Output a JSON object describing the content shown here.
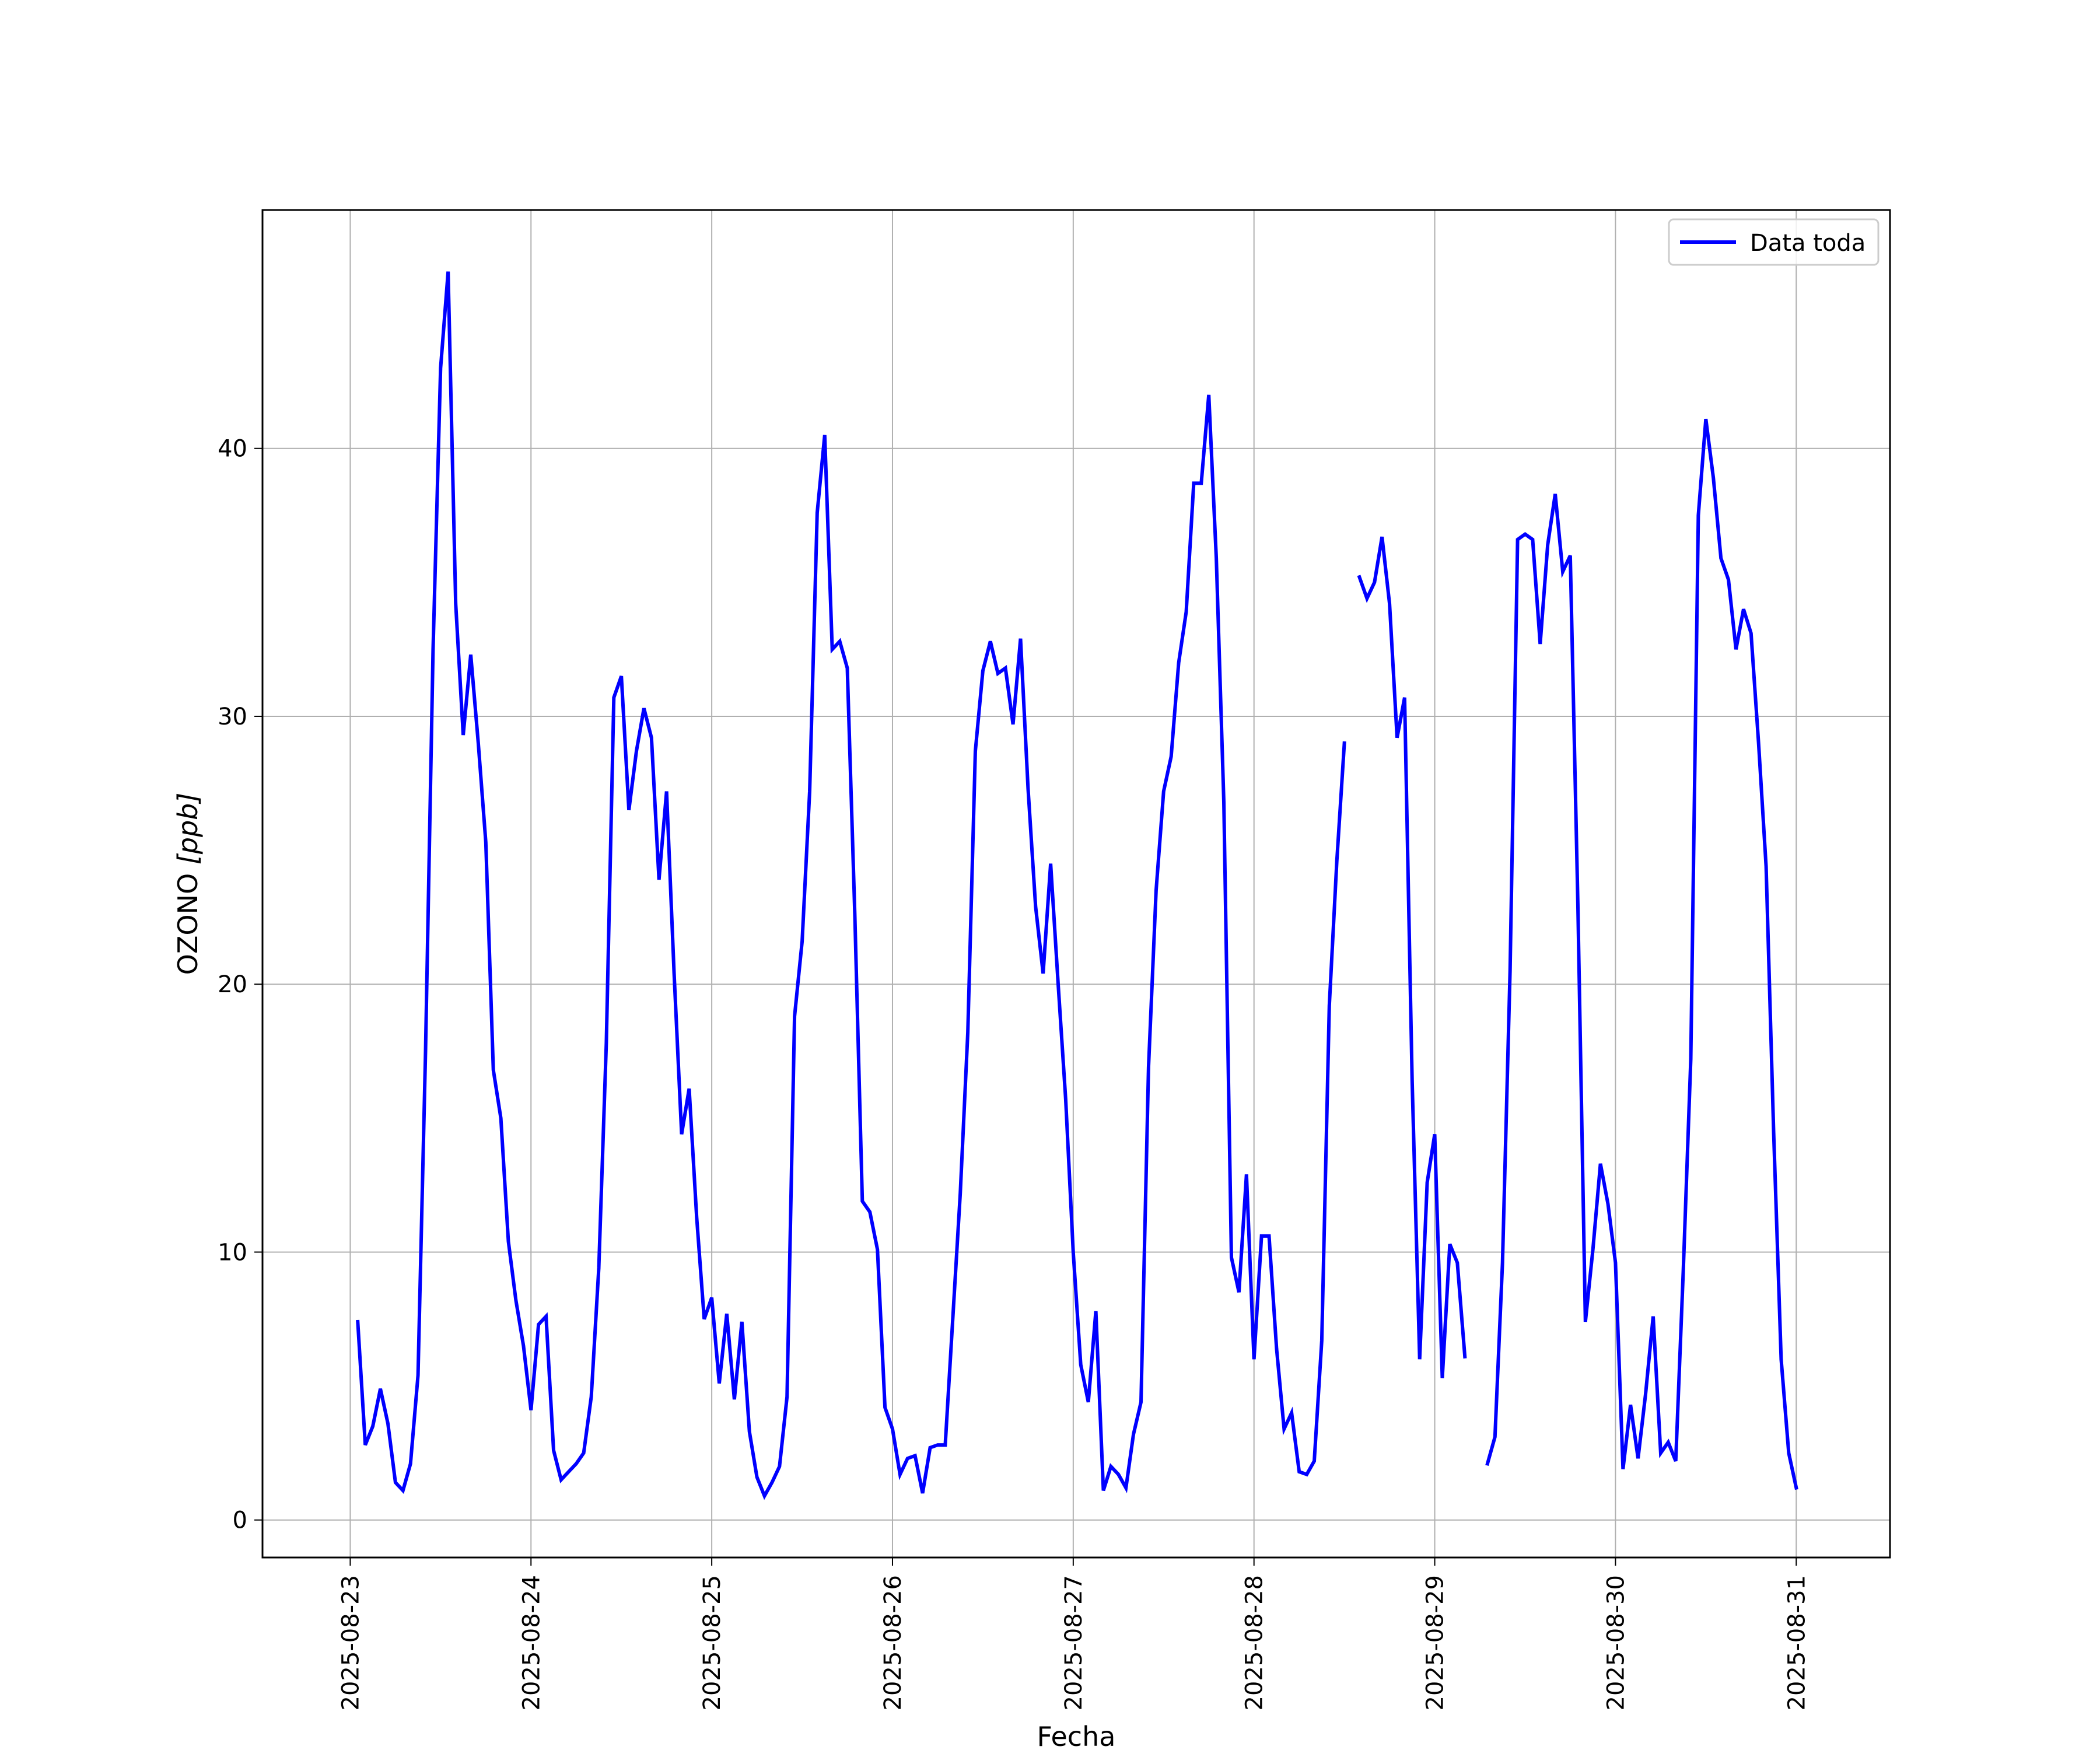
{
  "chart_data": {
    "type": "line",
    "xlabel": "Fecha",
    "ylabel": "OZONO [ppb]",
    "ylabel_main": "OZONO ",
    "ylabel_unit": "[ppb]",
    "x_is_date": true,
    "xlim": [
      "2025-08-22 12:21",
      "2025-08-31 12:27"
    ],
    "ylim": [
      -1.4,
      48.9
    ],
    "x_ticks": [
      "2025-08-23",
      "2025-08-24",
      "2025-08-25",
      "2025-08-26",
      "2025-08-27",
      "2025-08-28",
      "2025-08-29",
      "2025-08-30",
      "2025-08-31"
    ],
    "y_ticks": [
      0,
      10,
      20,
      30,
      40
    ],
    "grid": true,
    "legend_position": "top-right",
    "series": [
      {
        "name": "Data toda",
        "color": "#0000ff",
        "points": [
          [
            "2025-08-23 01:00",
            7.4
          ],
          [
            "2025-08-23 02:00",
            2.8
          ],
          [
            "2025-08-23 03:00",
            3.5
          ],
          [
            "2025-08-23 04:00",
            4.9
          ],
          [
            "2025-08-23 05:00",
            3.6
          ],
          [
            "2025-08-23 06:00",
            1.4
          ],
          [
            "2025-08-23 07:00",
            1.1
          ],
          [
            "2025-08-23 08:00",
            2.1
          ],
          [
            "2025-08-23 09:00",
            5.4
          ],
          [
            "2025-08-23 10:00",
            17.5
          ],
          [
            "2025-08-23 11:00",
            32.5
          ],
          [
            "2025-08-23 12:00",
            43.0
          ],
          [
            "2025-08-23 13:00",
            46.6
          ],
          [
            "2025-08-23 14:00",
            34.2
          ],
          [
            "2025-08-23 15:00",
            29.3
          ],
          [
            "2025-08-23 16:00",
            32.3
          ],
          [
            "2025-08-23 17:00",
            29.0
          ],
          [
            "2025-08-23 18:00",
            25.3
          ],
          [
            "2025-08-23 19:00",
            16.8
          ],
          [
            "2025-08-23 20:00",
            15.0
          ],
          [
            "2025-08-23 21:00",
            10.4
          ],
          [
            "2025-08-23 22:00",
            8.2
          ],
          [
            "2025-08-23 23:00",
            6.5
          ],
          [
            "2025-08-24 00:00",
            4.1
          ],
          [
            "2025-08-24 01:00",
            7.3
          ],
          [
            "2025-08-24 02:00",
            7.6
          ],
          [
            "2025-08-24 03:00",
            2.6
          ],
          [
            "2025-08-24 04:00",
            1.5
          ],
          [
            "2025-08-24 05:00",
            1.8
          ],
          [
            "2025-08-24 06:00",
            2.1
          ],
          [
            "2025-08-24 07:00",
            2.5
          ],
          [
            "2025-08-24 08:00",
            4.6
          ],
          [
            "2025-08-24 09:00",
            9.4
          ],
          [
            "2025-08-24 10:00",
            17.8
          ],
          [
            "2025-08-24 11:00",
            30.7
          ],
          [
            "2025-08-24 12:00",
            31.5
          ],
          [
            "2025-08-24 13:00",
            26.5
          ],
          [
            "2025-08-24 14:00",
            28.7
          ],
          [
            "2025-08-24 15:00",
            30.3
          ],
          [
            "2025-08-24 16:00",
            29.2
          ],
          [
            "2025-08-24 17:00",
            23.9
          ],
          [
            "2025-08-24 18:00",
            27.2
          ],
          [
            "2025-08-24 19:00",
            20.4
          ],
          [
            "2025-08-24 20:00",
            14.4
          ],
          [
            "2025-08-24 21:00",
            16.1
          ],
          [
            "2025-08-24 22:00",
            11.3
          ],
          [
            "2025-08-24 23:00",
            7.5
          ],
          [
            "2025-08-25 00:00",
            8.3
          ],
          [
            "2025-08-25 01:00",
            5.1
          ],
          [
            "2025-08-25 02:00",
            7.7
          ],
          [
            "2025-08-25 03:00",
            4.5
          ],
          [
            "2025-08-25 04:00",
            7.4
          ],
          [
            "2025-08-25 05:00",
            3.3
          ],
          [
            "2025-08-25 06:00",
            1.6
          ],
          [
            "2025-08-25 07:00",
            0.9
          ],
          [
            "2025-08-25 08:00",
            1.4
          ],
          [
            "2025-08-25 09:00",
            2.0
          ],
          [
            "2025-08-25 10:00",
            4.6
          ],
          [
            "2025-08-25 11:00",
            18.8
          ],
          [
            "2025-08-25 12:00",
            21.6
          ],
          [
            "2025-08-25 13:00",
            27.2
          ],
          [
            "2025-08-25 14:00",
            37.6
          ],
          [
            "2025-08-25 15:00",
            40.5
          ],
          [
            "2025-08-25 16:00",
            32.5
          ],
          [
            "2025-08-25 17:00",
            32.8
          ],
          [
            "2025-08-25 18:00",
            31.8
          ],
          [
            "2025-08-25 19:00",
            22.6
          ],
          [
            "2025-08-25 20:00",
            11.9
          ],
          [
            "2025-08-25 21:00",
            11.5
          ],
          [
            "2025-08-25 22:00",
            10.1
          ],
          [
            "2025-08-25 23:00",
            4.2
          ],
          [
            "2025-08-26 00:00",
            3.4
          ],
          [
            "2025-08-26 01:00",
            1.7
          ],
          [
            "2025-08-26 02:00",
            2.3
          ],
          [
            "2025-08-26 03:00",
            2.4
          ],
          [
            "2025-08-26 04:00",
            1.0
          ],
          [
            "2025-08-26 05:00",
            2.7
          ],
          [
            "2025-08-26 06:00",
            2.8
          ],
          [
            "2025-08-26 07:00",
            2.8
          ],
          [
            "2025-08-26 08:00",
            7.5
          ],
          [
            "2025-08-26 09:00",
            12.2
          ],
          [
            "2025-08-26 10:00",
            18.2
          ],
          [
            "2025-08-26 11:00",
            28.7
          ],
          [
            "2025-08-26 12:00",
            31.7
          ],
          [
            "2025-08-26 13:00",
            32.8
          ],
          [
            "2025-08-26 14:00",
            31.6
          ],
          [
            "2025-08-26 15:00",
            31.8
          ],
          [
            "2025-08-26 16:00",
            29.7
          ],
          [
            "2025-08-26 17:00",
            32.9
          ],
          [
            "2025-08-26 18:00",
            27.3
          ],
          [
            "2025-08-26 19:00",
            22.9
          ],
          [
            "2025-08-26 20:00",
            20.4
          ],
          [
            "2025-08-26 21:00",
            24.5
          ],
          [
            "2025-08-26 22:00",
            20.0
          ],
          [
            "2025-08-26 23:00",
            15.7
          ],
          [
            "2025-08-27 00:00",
            10.0
          ],
          [
            "2025-08-27 01:00",
            5.8
          ],
          [
            "2025-08-27 02:00",
            4.4
          ],
          [
            "2025-08-27 03:00",
            7.8
          ],
          [
            "2025-08-27 04:00",
            1.1
          ],
          [
            "2025-08-27 05:00",
            2.0
          ],
          [
            "2025-08-27 06:00",
            1.7
          ],
          [
            "2025-08-27 07:00",
            1.2
          ],
          [
            "2025-08-27 08:00",
            3.2
          ],
          [
            "2025-08-27 09:00",
            4.4
          ],
          [
            "2025-08-27 10:00",
            16.9
          ],
          [
            "2025-08-27 11:00",
            23.5
          ],
          [
            "2025-08-27 12:00",
            27.2
          ],
          [
            "2025-08-27 13:00",
            28.5
          ],
          [
            "2025-08-27 14:00",
            32.0
          ],
          [
            "2025-08-27 15:00",
            33.9
          ],
          [
            "2025-08-27 16:00",
            38.7
          ],
          [
            "2025-08-27 17:00",
            38.7
          ],
          [
            "2025-08-27 18:00",
            42.0
          ],
          [
            "2025-08-27 19:00",
            35.9
          ],
          [
            "2025-08-27 20:00",
            26.8
          ],
          [
            "2025-08-27 21:00",
            9.8
          ],
          [
            "2025-08-27 22:00",
            8.5
          ],
          [
            "2025-08-27 23:00",
            12.9
          ],
          [
            "2025-08-28 00:00",
            6.0
          ],
          [
            "2025-08-28 01:00",
            10.6
          ],
          [
            "2025-08-28 02:00",
            10.6
          ],
          [
            "2025-08-28 03:00",
            6.4
          ],
          [
            "2025-08-28 04:00",
            3.4
          ],
          [
            "2025-08-28 05:00",
            4.0
          ],
          [
            "2025-08-28 06:00",
            1.8
          ],
          [
            "2025-08-28 07:00",
            1.7
          ],
          [
            "2025-08-28 08:00",
            2.2
          ],
          [
            "2025-08-28 09:00",
            6.7
          ],
          [
            "2025-08-28 10:00",
            19.2
          ],
          [
            "2025-08-28 11:00",
            24.6
          ],
          [
            "2025-08-28 12:00",
            29.0
          ],
          null,
          [
            "2025-08-28 14:00",
            35.2
          ],
          [
            "2025-08-28 15:00",
            34.4
          ],
          [
            "2025-08-28 16:00",
            35.0
          ],
          [
            "2025-08-28 17:00",
            36.7
          ],
          [
            "2025-08-28 18:00",
            34.2
          ],
          [
            "2025-08-28 19:00",
            29.2
          ],
          [
            "2025-08-28 20:00",
            30.7
          ],
          [
            "2025-08-28 21:00",
            16.4
          ],
          [
            "2025-08-28 22:00",
            6.0
          ],
          [
            "2025-08-28 23:00",
            12.6
          ],
          [
            "2025-08-29 00:00",
            14.4
          ],
          [
            "2025-08-29 01:00",
            5.3
          ],
          [
            "2025-08-29 02:00",
            10.3
          ],
          [
            "2025-08-29 03:00",
            9.6
          ],
          [
            "2025-08-29 04:00",
            6.1
          ],
          null,
          [
            "2025-08-29 07:00",
            2.1
          ],
          [
            "2025-08-29 08:00",
            3.1
          ],
          [
            "2025-08-29 09:00",
            9.6
          ],
          [
            "2025-08-29 10:00",
            20.5
          ],
          [
            "2025-08-29 11:00",
            36.6
          ],
          [
            "2025-08-29 12:00",
            36.8
          ],
          [
            "2025-08-29 13:00",
            36.6
          ],
          [
            "2025-08-29 14:00",
            32.7
          ],
          [
            "2025-08-29 15:00",
            36.4
          ],
          [
            "2025-08-29 16:00",
            38.3
          ],
          [
            "2025-08-29 17:00",
            35.4
          ],
          [
            "2025-08-29 18:00",
            36.0
          ],
          [
            "2025-08-29 19:00",
            23.0
          ],
          [
            "2025-08-29 20:00",
            7.4
          ],
          [
            "2025-08-29 21:00",
            10.1
          ],
          [
            "2025-08-29 22:00",
            13.3
          ],
          [
            "2025-08-29 23:00",
            11.8
          ],
          [
            "2025-08-30 00:00",
            9.6
          ],
          [
            "2025-08-30 01:00",
            1.9
          ],
          [
            "2025-08-30 02:00",
            4.3
          ],
          [
            "2025-08-30 03:00",
            2.3
          ],
          [
            "2025-08-30 04:00",
            4.7
          ],
          [
            "2025-08-30 05:00",
            7.6
          ],
          [
            "2025-08-30 06:00",
            2.5
          ],
          [
            "2025-08-30 07:00",
            2.9
          ],
          [
            "2025-08-30 08:00",
            2.2
          ],
          [
            "2025-08-30 09:00",
            9.3
          ],
          [
            "2025-08-30 10:00",
            17.2
          ],
          [
            "2025-08-30 11:00",
            37.5
          ],
          [
            "2025-08-30 12:00",
            41.1
          ],
          [
            "2025-08-30 13:00",
            38.9
          ],
          [
            "2025-08-30 14:00",
            35.9
          ],
          [
            "2025-08-30 15:00",
            35.1
          ],
          [
            "2025-08-30 16:00",
            32.5
          ],
          [
            "2025-08-30 17:00",
            34.0
          ],
          [
            "2025-08-30 18:00",
            33.1
          ],
          [
            "2025-08-30 19:00",
            29.0
          ],
          [
            "2025-08-30 20:00",
            24.4
          ],
          [
            "2025-08-30 21:00",
            14.5
          ],
          [
            "2025-08-30 22:00",
            6.0
          ],
          [
            "2025-08-30 23:00",
            2.5
          ],
          [
            "2025-08-31 00:00",
            1.2
          ]
        ]
      }
    ]
  }
}
